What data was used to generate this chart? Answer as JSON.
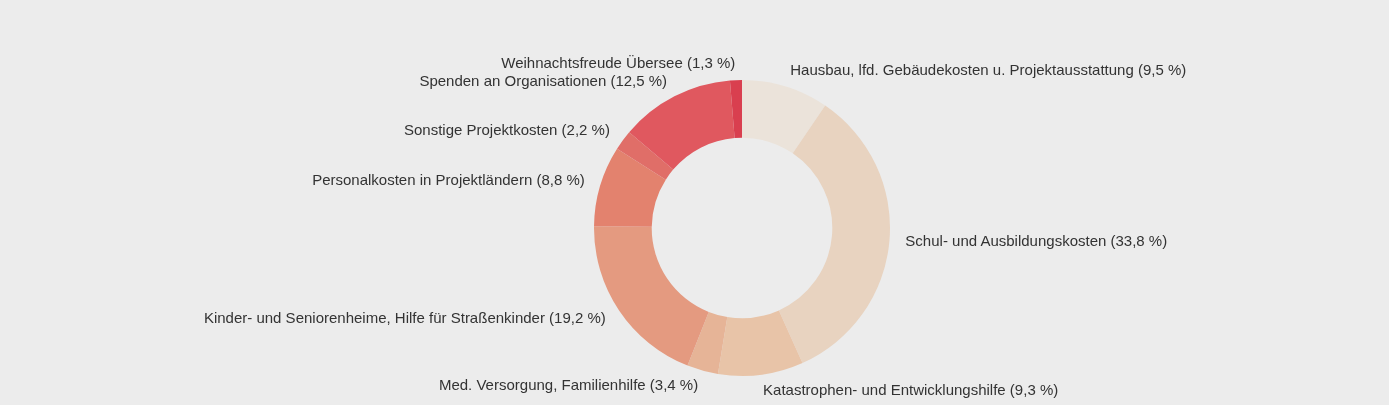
{
  "chart_data": {
    "type": "donut",
    "categories": [
      "Hausbau, lfd. Gebäudekosten u. Projektausstattung",
      "Schul- und Ausbildungskosten",
      "Katastrophen- und Entwicklungshilfe",
      "Med. Versorgung, Familienhilfe",
      "Kinder- und Seniorenheime, Hilfe für Straßenkinder",
      "Personalkosten in Projektländern",
      "Sonstige Projektkosten",
      "Spenden an Organisationen",
      "Weihnachtsfreude Übersee"
    ],
    "values": [
      9.5,
      33.8,
      9.3,
      3.4,
      19.2,
      8.8,
      2.2,
      12.5,
      1.3
    ],
    "value_labels": [
      "(9,5 %)",
      "(33,8 %)",
      "(9,3 %)",
      "(3,4 %)",
      "(19,2 %)",
      "(8,8 %)",
      "(2,2 %)",
      "(12,5 %)",
      "(1,3 %)"
    ],
    "colors": [
      "#ebe3da",
      "#e8d3c0",
      "#e8c4a8",
      "#e6b497",
      "#e49a80",
      "#e3826e",
      "#e06e68",
      "#e0585f",
      "#d93f4f"
    ],
    "legend": false
  }
}
